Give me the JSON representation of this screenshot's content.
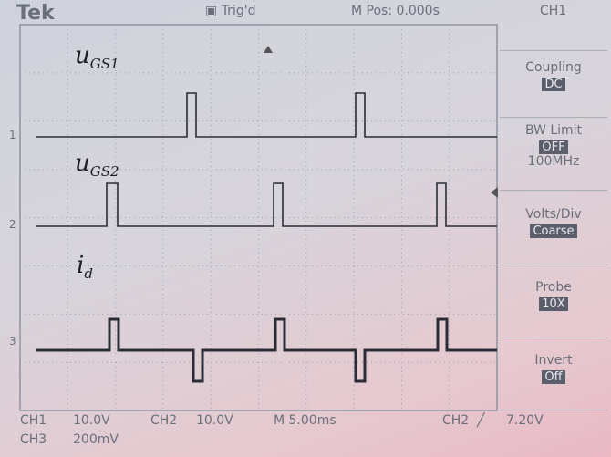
{
  "header": {
    "brand": "Tek",
    "trigger": "Trig'd",
    "position": "M Pos: 0.000s",
    "channel": "CH1"
  },
  "menu": [
    {
      "label": "Coupling",
      "value": "DC"
    },
    {
      "label": "BW Limit",
      "value": "OFF",
      "extra": "100MHz"
    },
    {
      "label": "Volts/Div",
      "value": "Coarse"
    },
    {
      "label": "Probe",
      "value": "10X"
    },
    {
      "label": "Invert",
      "value": "Off"
    }
  ],
  "traces": [
    {
      "symbol": "u",
      "sub": "GS1",
      "marker": "1"
    },
    {
      "symbol": "u",
      "sub": "GS2",
      "marker": "2"
    },
    {
      "symbol": "i",
      "sub": "d",
      "marker": "3"
    }
  ],
  "footer": {
    "ch1": "CH1",
    "ch1_scale": "10.0V",
    "ch2": "CH2",
    "ch2_scale": "10.0V",
    "time": "M 5.00ms",
    "trig_source": "CH2",
    "trig_slope": "╱",
    "trig_level": "7.20V",
    "ch3": "CH3",
    "ch3_scale": "200mV"
  }
}
